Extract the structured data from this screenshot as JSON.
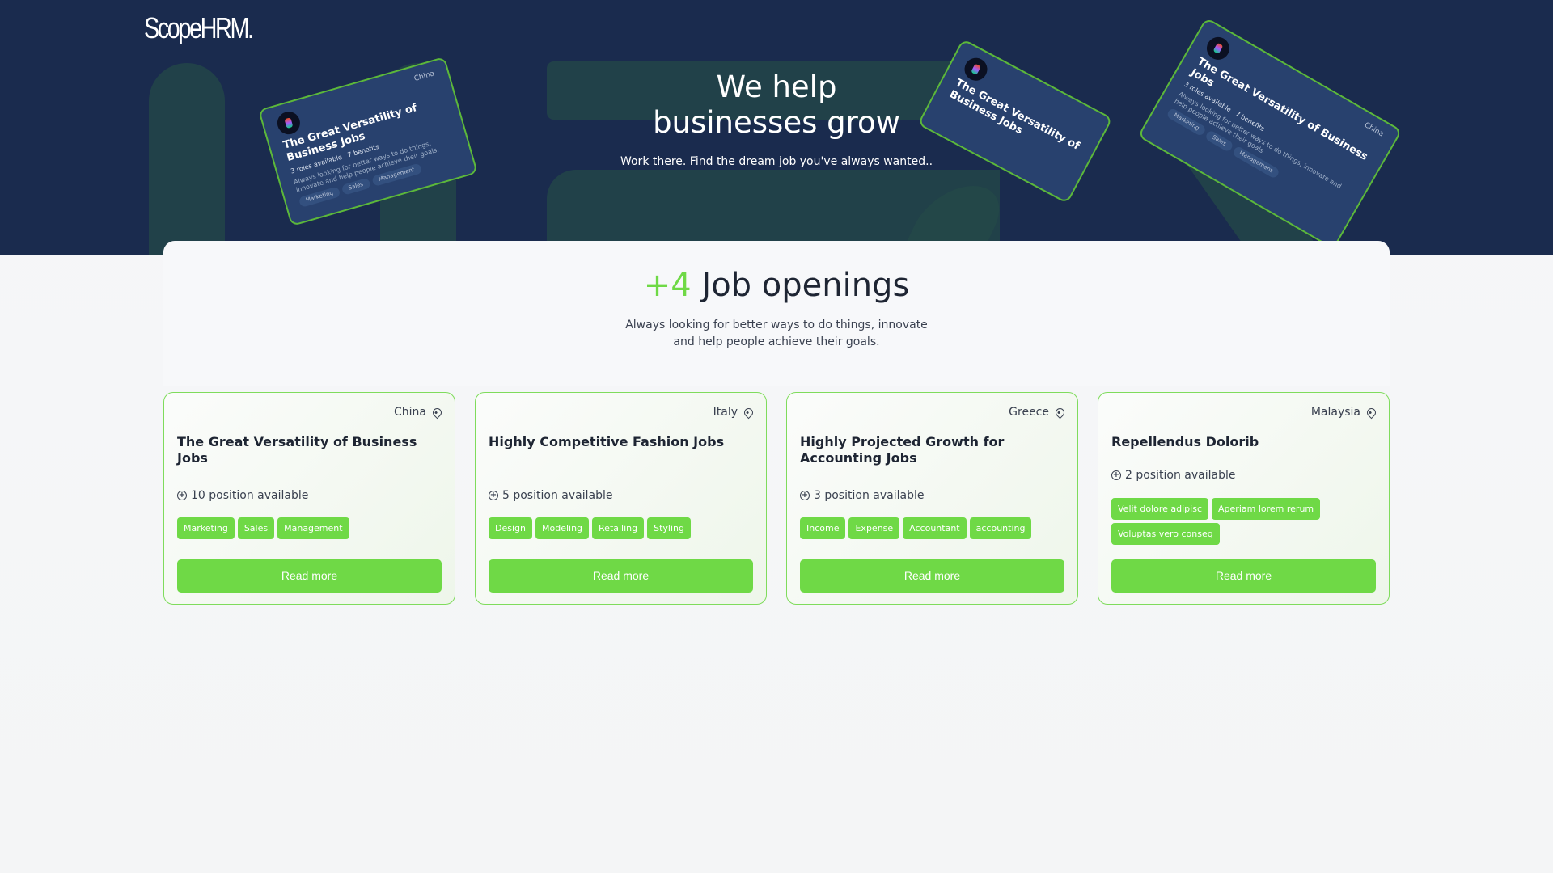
{
  "brand": {
    "logo": "ScopeHRM."
  },
  "hero": {
    "title_line1": "We help",
    "title_line2": "businesses grow",
    "subtitle": "Work there. Find the dream job you've always wanted..",
    "showcase_card": {
      "location": "China",
      "title": "The Great Versatility of Business Jobs",
      "roles": "3 roles available",
      "benefits": "7 benefits",
      "description": "Always looking for better ways to do things, innovate and help people achieve their goals.",
      "tags": [
        "Marketing",
        "Sales",
        "Management"
      ]
    }
  },
  "openings": {
    "count": "+4",
    "label": "Job openings",
    "subtitle": "Always looking for better ways to do things, innovate and help people achieve their goals."
  },
  "jobs": [
    {
      "location": "China",
      "title": "The Great Versatility of Business Jobs",
      "positions": "10 position available",
      "tags": [
        "Marketing",
        "Sales",
        "Management"
      ],
      "button": "Read more"
    },
    {
      "location": "Italy",
      "title": "Highly Competitive Fashion Jobs",
      "positions": "5 position available",
      "tags": [
        "Design",
        "Modeling",
        "Retailing",
        "Styling"
      ],
      "button": "Read more"
    },
    {
      "location": "Greece",
      "title": "Highly Projected Growth for Accounting Jobs",
      "positions": "3 position available",
      "tags": [
        "Income",
        "Expense",
        "Accountant",
        "accounting"
      ],
      "button": "Read more"
    },
    {
      "location": "Malaysia",
      "title": "Repellendus Dolorib",
      "positions": "2 position available",
      "tags": [
        "Velit dolore adipisc",
        "Aperiam lorem rerum",
        "Voluptas vero conseq"
      ],
      "button": "Read more"
    }
  ],
  "colors": {
    "hero_bg": "#1a2b4e",
    "accent": "#6fd946"
  }
}
